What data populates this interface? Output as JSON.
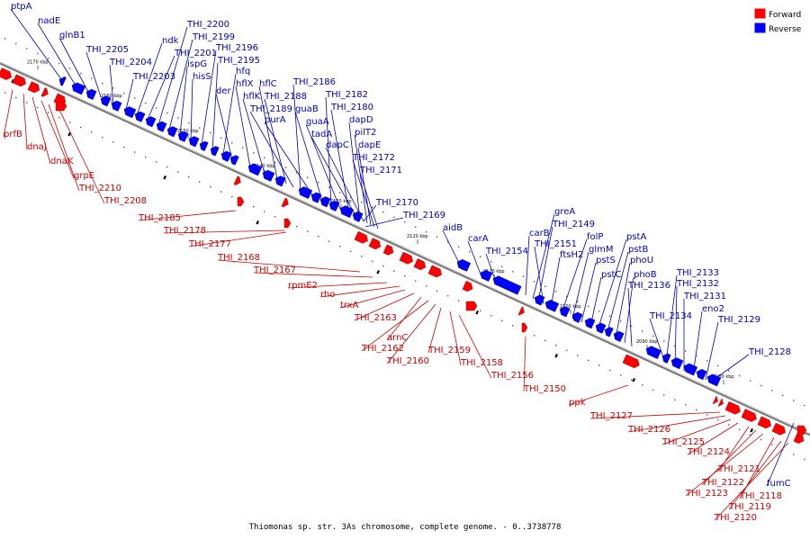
{
  "caption": "Thiomonas sp. str. 3As chromosome, complete genome. - 0..3738778",
  "legend": {
    "forward": {
      "label": "Forward",
      "color": "#ff0000"
    },
    "reverse": {
      "label": "Reverse",
      "color": "#0000ff"
    }
  },
  "colors": {
    "forward_label": "#cc0000",
    "reverse_label": "#0000bb",
    "backbone": "#888888"
  },
  "ticks": [
    "2170 kbp",
    "2160 kbp",
    "2150 kbp",
    "2140 kbp",
    "2130 kbp",
    "2120 kbp",
    "2110 kbp",
    "2100 kbp",
    "2090 kbp",
    "2080 kbp"
  ],
  "reverse_genes": [
    "ptpA",
    "nadE",
    "glnB1",
    "THI_2205",
    "THI_2204",
    "THI_2203",
    "ndk",
    "THI_2201",
    "THI_2200",
    "THI_2199",
    "ispG",
    "hisS",
    "THI_2196",
    "THI_2195",
    "hfq",
    "der",
    "hflX",
    "hflK",
    "hflC",
    "THI_2188",
    "THI_2189",
    "THI_2186",
    "purA",
    "guaB",
    "THI_2182",
    "guaA",
    "THI_2180",
    "tadA",
    "dapD",
    "dapC",
    "pilT2",
    "dapE",
    "THI_2172",
    "THI_2171",
    "THI_2170",
    "THI_2169",
    "aidB",
    "carA",
    "THI_2154",
    "carB",
    "greA",
    "THI_2149",
    "THI_2151",
    "ftsH2",
    "folP",
    "glmM",
    "pstS",
    "pstC",
    "pstA",
    "pstB",
    "phoU",
    "phoB",
    "THI_2136",
    "THI_2133",
    "THI_2132",
    "THI_2131",
    "eno2",
    "THI_2134",
    "THI_2129",
    "THI_2128",
    "fumC"
  ],
  "forward_genes": [
    "prfB",
    "dnaJ",
    "dnaK",
    "grpE",
    "THI_2210",
    "THI_2208",
    "THI_2185",
    "THI_2178",
    "THI_2177",
    "THI_2168",
    "THI_2167",
    "rpmE2",
    "rho",
    "trxA",
    "THI_2163",
    "arnC",
    "THI_2162",
    "THI_2160",
    "THI_2159",
    "THI_2158",
    "THI_2156",
    "THI_2150",
    "ppk",
    "THI_2127",
    "THI_2126",
    "THI_2125",
    "THI_2124",
    "THI_2121",
    "THI_2122",
    "THI_2123",
    "THI_2118",
    "THI_2119",
    "THI_2120"
  ]
}
